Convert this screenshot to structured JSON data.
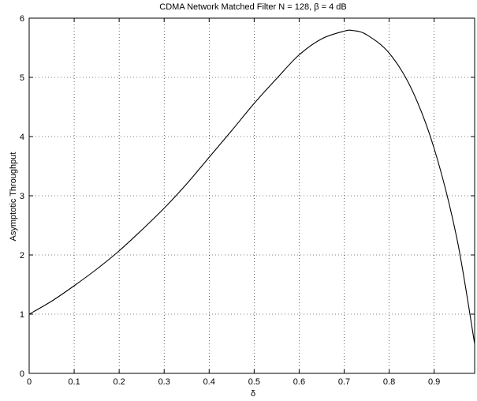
{
  "chart_data": {
    "type": "line",
    "title": "CDMA Network Matched Filter N = 128, β = 4 dB",
    "xlabel": "δ",
    "ylabel": "Asymptotic Throughput",
    "xlim": [
      0,
      0.99
    ],
    "ylim": [
      0,
      6
    ],
    "xticks": [
      0,
      0.1,
      0.2,
      0.3,
      0.4,
      0.5,
      0.6,
      0.7,
      0.8,
      0.9
    ],
    "xtick_labels": [
      "0",
      "0.1",
      "0.2",
      "0.3",
      "0.4",
      "0.5",
      "0.6",
      "0.7",
      "0.8",
      "0.9"
    ],
    "yticks": [
      0,
      1,
      2,
      3,
      4,
      5,
      6
    ],
    "ytick_labels": [
      "0",
      "1",
      "2",
      "3",
      "4",
      "5",
      "6"
    ],
    "grid": true,
    "series": [
      {
        "color": "#000000",
        "x": [
          0,
          0.05,
          0.1,
          0.15,
          0.2,
          0.25,
          0.3,
          0.35,
          0.4,
          0.45,
          0.5,
          0.55,
          0.6,
          0.65,
          0.7,
          0.72,
          0.75,
          0.8,
          0.85,
          0.9,
          0.95,
          0.99
        ],
        "y": [
          1.0,
          1.22,
          1.48,
          1.76,
          2.07,
          2.42,
          2.79,
          3.2,
          3.65,
          4.1,
          4.56,
          4.98,
          5.38,
          5.65,
          5.78,
          5.79,
          5.72,
          5.41,
          4.8,
          3.8,
          2.3,
          0.5
        ]
      }
    ]
  }
}
